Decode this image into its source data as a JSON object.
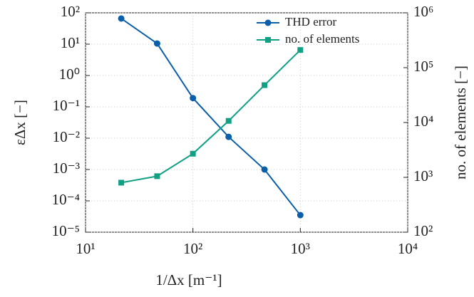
{
  "chart_data": {
    "type": "line",
    "xlabel": "1/Δx [m⁻¹]",
    "ylabel": "εΔx [−]",
    "y2label": "no. of elements [−]",
    "x": [
      21.5,
      46.4,
      100,
      215,
      464,
      1000
    ],
    "series": [
      {
        "name": "THD error",
        "color": "#0b5ea8",
        "marker": "circle",
        "values": [
          66,
          10.5,
          0.19,
          0.011,
          0.001,
          3.5e-05
        ]
      },
      {
        "name": "no. of elements",
        "color": "#12a085",
        "marker": "square",
        "axis": "y2",
        "values": [
          800,
          1050,
          2700,
          10700,
          48000,
          210000
        ]
      }
    ],
    "xscale": "log",
    "yscale": "log",
    "y2scale": "log",
    "xlim": [
      10,
      10000
    ],
    "ylim": [
      1e-05,
      100
    ],
    "y2lim": [
      100,
      1000000
    ],
    "xticks": [
      {
        "value": 10,
        "label": "10¹"
      },
      {
        "value": 100,
        "label": "10²"
      },
      {
        "value": 1000,
        "label": "10³"
      },
      {
        "value": 10000,
        "label": "10⁴"
      }
    ],
    "yticks": [
      {
        "value": 1e-05,
        "label": "10⁻⁵"
      },
      {
        "value": 0.0001,
        "label": "10⁻⁴"
      },
      {
        "value": 0.001,
        "label": "10⁻³"
      },
      {
        "value": 0.01,
        "label": "10⁻²"
      },
      {
        "value": 0.1,
        "label": "10⁻¹"
      },
      {
        "value": 1,
        "label": "10⁰"
      },
      {
        "value": 10,
        "label": "10¹"
      },
      {
        "value": 100,
        "label": "10²"
      }
    ],
    "y2ticks": [
      {
        "value": 100,
        "label": "10²"
      },
      {
        "value": 1000,
        "label": "10³"
      },
      {
        "value": 10000,
        "label": "10⁴"
      },
      {
        "value": 100000,
        "label": "10⁵"
      },
      {
        "value": 1000000,
        "label": "10⁶"
      }
    ],
    "grid": true,
    "legend": "top-right"
  }
}
